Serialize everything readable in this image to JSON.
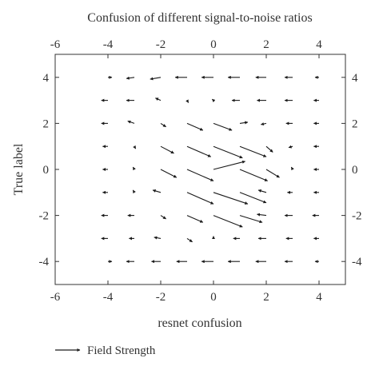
{
  "chart_data": {
    "type": "quiver",
    "title": "Confusion of different signal-to-noise ratios",
    "xlabel": "resnet confusion",
    "ylabel": "True label",
    "xlim": [
      -6,
      5
    ],
    "ylim": [
      -5,
      5
    ],
    "x_ticks": [
      "-6",
      "-4",
      "-2",
      "0",
      "2",
      "4"
    ],
    "y_ticks": [
      "-4",
      "-2",
      "0",
      "2",
      "4"
    ],
    "x_tick_values": [
      -6,
      -4,
      -2,
      0,
      2,
      4
    ],
    "y_tick_values": [
      -4,
      -2,
      0,
      2,
      4
    ],
    "legend": {
      "label": "Field Strength",
      "placement": "bottom-left"
    },
    "grid": false,
    "color": "#1a1a1a",
    "vectors": [
      {
        "x": -4,
        "y": 4,
        "u": 0.15,
        "v": 0.0
      },
      {
        "x": -3,
        "y": 4,
        "u": -0.3,
        "v": -0.05
      },
      {
        "x": -2,
        "y": 4,
        "u": -0.4,
        "v": -0.08
      },
      {
        "x": -1,
        "y": 4,
        "u": -0.45,
        "v": 0.0
      },
      {
        "x": 0,
        "y": 4,
        "u": -0.45,
        "v": 0.0
      },
      {
        "x": 1,
        "y": 4,
        "u": -0.45,
        "v": 0.0
      },
      {
        "x": 2,
        "y": 4,
        "u": -0.4,
        "v": 0.0
      },
      {
        "x": 3,
        "y": 4,
        "u": -0.3,
        "v": 0.0
      },
      {
        "x": 4,
        "y": 4,
        "u": -0.15,
        "v": 0.0
      },
      {
        "x": -4,
        "y": 3,
        "u": -0.25,
        "v": 0.0
      },
      {
        "x": -3,
        "y": 3,
        "u": -0.3,
        "v": 0.0
      },
      {
        "x": -2,
        "y": 3,
        "u": -0.2,
        "v": 0.1
      },
      {
        "x": -1,
        "y": 3,
        "u": 0.05,
        "v": -0.1
      },
      {
        "x": 0,
        "y": 3,
        "u": -0.05,
        "v": 0.05
      },
      {
        "x": 1,
        "y": 3,
        "u": -0.3,
        "v": 0.0
      },
      {
        "x": 2,
        "y": 3,
        "u": -0.35,
        "v": 0.0
      },
      {
        "x": 3,
        "y": 3,
        "u": -0.3,
        "v": 0.0
      },
      {
        "x": 4,
        "y": 3,
        "u": -0.2,
        "v": 0.0
      },
      {
        "x": -4,
        "y": 2,
        "u": -0.25,
        "v": 0.0
      },
      {
        "x": -3,
        "y": 2,
        "u": -0.25,
        "v": 0.1
      },
      {
        "x": -2,
        "y": 2,
        "u": 0.2,
        "v": -0.15
      },
      {
        "x": -1,
        "y": 2,
        "u": 0.6,
        "v": -0.3
      },
      {
        "x": 0,
        "y": 2,
        "u": 0.7,
        "v": -0.3
      },
      {
        "x": 1,
        "y": 2,
        "u": 0.3,
        "v": 0.05
      },
      {
        "x": 2,
        "y": 2,
        "u": -0.2,
        "v": -0.05
      },
      {
        "x": 3,
        "y": 2,
        "u": -0.25,
        "v": 0.0
      },
      {
        "x": 4,
        "y": 2,
        "u": -0.2,
        "v": 0.0
      },
      {
        "x": -4,
        "y": 1,
        "u": -0.2,
        "v": 0.0
      },
      {
        "x": -3,
        "y": 1,
        "u": 0.05,
        "v": -0.1
      },
      {
        "x": -2,
        "y": 1,
        "u": 0.5,
        "v": -0.3
      },
      {
        "x": -1,
        "y": 1,
        "u": 0.9,
        "v": -0.45
      },
      {
        "x": 0,
        "y": 1,
        "u": 1.1,
        "v": -0.5
      },
      {
        "x": 1,
        "y": 1,
        "u": 1.0,
        "v": -0.45
      },
      {
        "x": 2,
        "y": 1,
        "u": 0.25,
        "v": -0.25
      },
      {
        "x": 3,
        "y": 1,
        "u": -0.15,
        "v": -0.05
      },
      {
        "x": 4,
        "y": 1,
        "u": -0.2,
        "v": 0.0
      },
      {
        "x": -4,
        "y": 0,
        "u": -0.2,
        "v": 0.0
      },
      {
        "x": -3,
        "y": 0,
        "u": -0.05,
        "v": 0.1
      },
      {
        "x": -2,
        "y": 0,
        "u": 0.6,
        "v": -0.35
      },
      {
        "x": -1,
        "y": 0,
        "u": 1.0,
        "v": -0.5
      },
      {
        "x": 0,
        "y": 0,
        "u": 1.2,
        "v": 0.35
      },
      {
        "x": 1,
        "y": 0,
        "u": 1.05,
        "v": -0.5
      },
      {
        "x": 2,
        "y": 0,
        "u": 0.5,
        "v": -0.35
      },
      {
        "x": 3,
        "y": 0,
        "u": -0.05,
        "v": 0.1
      },
      {
        "x": 4,
        "y": 0,
        "u": -0.2,
        "v": 0.0
      },
      {
        "x": -4,
        "y": -1,
        "u": -0.2,
        "v": 0.0
      },
      {
        "x": -3,
        "y": -1,
        "u": -0.05,
        "v": 0.1
      },
      {
        "x": -2,
        "y": -1,
        "u": -0.3,
        "v": 0.1
      },
      {
        "x": -1,
        "y": -1,
        "u": 1.0,
        "v": -0.5
      },
      {
        "x": 0,
        "y": -1,
        "u": 1.3,
        "v": -0.5
      },
      {
        "x": 1,
        "y": -1,
        "u": 1.0,
        "v": -0.45
      },
      {
        "x": 2,
        "y": -1,
        "u": -0.3,
        "v": 0.1
      },
      {
        "x": 3,
        "y": -1,
        "u": -0.2,
        "v": 0.0
      },
      {
        "x": 4,
        "y": -1,
        "u": -0.2,
        "v": 0.0
      },
      {
        "x": -4,
        "y": -2,
        "u": -0.25,
        "v": 0.0
      },
      {
        "x": -3,
        "y": -2,
        "u": -0.25,
        "v": 0.0
      },
      {
        "x": -2,
        "y": -2,
        "u": 0.2,
        "v": -0.15
      },
      {
        "x": -1,
        "y": -2,
        "u": 0.6,
        "v": -0.3
      },
      {
        "x": 0,
        "y": -2,
        "u": 1.1,
        "v": -0.5
      },
      {
        "x": 1,
        "y": -2,
        "u": 0.85,
        "v": -0.3
      },
      {
        "x": 2,
        "y": -2,
        "u": -0.35,
        "v": 0.05
      },
      {
        "x": 3,
        "y": -2,
        "u": -0.3,
        "v": 0.0
      },
      {
        "x": 4,
        "y": -2,
        "u": -0.25,
        "v": 0.0
      },
      {
        "x": -4,
        "y": -3,
        "u": -0.25,
        "v": 0.0
      },
      {
        "x": -3,
        "y": -3,
        "u": -0.2,
        "v": 0.0
      },
      {
        "x": -2,
        "y": -3,
        "u": -0.25,
        "v": 0.05
      },
      {
        "x": -1,
        "y": -3,
        "u": 0.2,
        "v": -0.15
      },
      {
        "x": 0,
        "y": -3,
        "u": 0.0,
        "v": 0.1
      },
      {
        "x": 1,
        "y": -3,
        "u": -0.25,
        "v": 0.0
      },
      {
        "x": 2,
        "y": -3,
        "u": -0.3,
        "v": 0.0
      },
      {
        "x": 3,
        "y": -3,
        "u": -0.25,
        "v": 0.0
      },
      {
        "x": 4,
        "y": -3,
        "u": -0.2,
        "v": 0.0
      },
      {
        "x": -4,
        "y": -4,
        "u": 0.15,
        "v": 0.0
      },
      {
        "x": -3,
        "y": -4,
        "u": -0.3,
        "v": 0.0
      },
      {
        "x": -2,
        "y": -4,
        "u": -0.35,
        "v": 0.0
      },
      {
        "x": -1,
        "y": -4,
        "u": -0.4,
        "v": 0.0
      },
      {
        "x": 0,
        "y": -4,
        "u": -0.45,
        "v": 0.0
      },
      {
        "x": 1,
        "y": -4,
        "u": -0.45,
        "v": 0.0
      },
      {
        "x": 2,
        "y": -4,
        "u": -0.4,
        "v": 0.0
      },
      {
        "x": 3,
        "y": -4,
        "u": -0.3,
        "v": 0.0
      },
      {
        "x": 4,
        "y": -4,
        "u": -0.15,
        "v": 0.0
      }
    ]
  }
}
